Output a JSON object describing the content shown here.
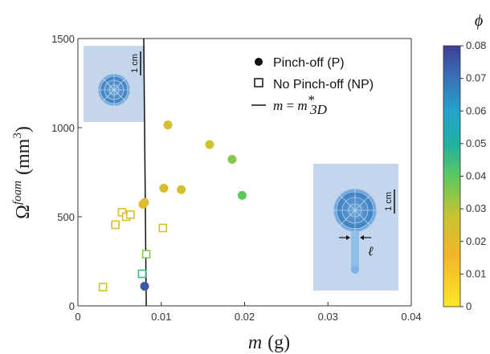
{
  "chart_data": {
    "type": "scatter",
    "xlabel_var": "m",
    "xlabel_unit": "(g)",
    "ylabel_base": "Ω",
    "ylabel_sup": "foam",
    "ylabel_unit": "(mm",
    "ylabel_unit_sup": "3",
    "ylabel_unit_close": ")",
    "xlim": [
      0,
      0.04
    ],
    "ylim": [
      0,
      1500
    ],
    "xticks": [
      "0",
      "0.01",
      "0.02",
      "0.03",
      "0.04"
    ],
    "yticks": [
      "0",
      "500",
      "1000",
      "1500"
    ],
    "legend": {
      "p": "Pinch-off (P)",
      "np": "No Pinch-off (NP)",
      "line_lhs": "m",
      "line_eq": " = ",
      "line_rhs": "m",
      "line_rhs_sup": "*",
      "line_rhs_sub": "3D"
    },
    "colorbar": {
      "title": "ϕ",
      "min": 0,
      "max": 0.08,
      "ticks": [
        "0",
        "0.01",
        "0.02",
        "0.03",
        "0.04",
        "0.05",
        "0.06",
        "0.07",
        "0.08"
      ]
    },
    "threshold_line": {
      "x": [
        0.0079,
        0.0082
      ],
      "y": [
        1500,
        0
      ]
    },
    "series": [
      {
        "name": "Pinch-off (P)",
        "marker": "circle",
        "points": [
          {
            "x": 0.0108,
            "y": 1015,
            "phi": 0.025
          },
          {
            "x": 0.0158,
            "y": 905,
            "phi": 0.026
          },
          {
            "x": 0.0185,
            "y": 822,
            "phi": 0.035
          },
          {
            "x": 0.0197,
            "y": 620,
            "phi": 0.04
          },
          {
            "x": 0.0103,
            "y": 660,
            "phi": 0.024
          },
          {
            "x": 0.0124,
            "y": 652,
            "phi": 0.024
          },
          {
            "x": 0.0078,
            "y": 570,
            "phi": 0.022
          },
          {
            "x": 0.008,
            "y": 580,
            "phi": 0.022
          },
          {
            "x": 0.008,
            "y": 110,
            "phi": 0.075
          }
        ]
      },
      {
        "name": "No Pinch-off (NP)",
        "marker": "square",
        "points": [
          {
            "x": 0.003,
            "y": 105,
            "phi": 0.026
          },
          {
            "x": 0.0045,
            "y": 455,
            "phi": 0.023
          },
          {
            "x": 0.0053,
            "y": 525,
            "phi": 0.024
          },
          {
            "x": 0.0058,
            "y": 500,
            "phi": 0.023
          },
          {
            "x": 0.0063,
            "y": 512,
            "phi": 0.023
          },
          {
            "x": 0.0077,
            "y": 180,
            "phi": 0.047
          },
          {
            "x": 0.0082,
            "y": 290,
            "phi": 0.035
          },
          {
            "x": 0.0102,
            "y": 437,
            "phi": 0.023
          }
        ]
      }
    ],
    "insets": [
      {
        "scale_label": "1 cm"
      },
      {
        "scale_label": "1 cm",
        "gap_label": "ℓ"
      }
    ]
  }
}
